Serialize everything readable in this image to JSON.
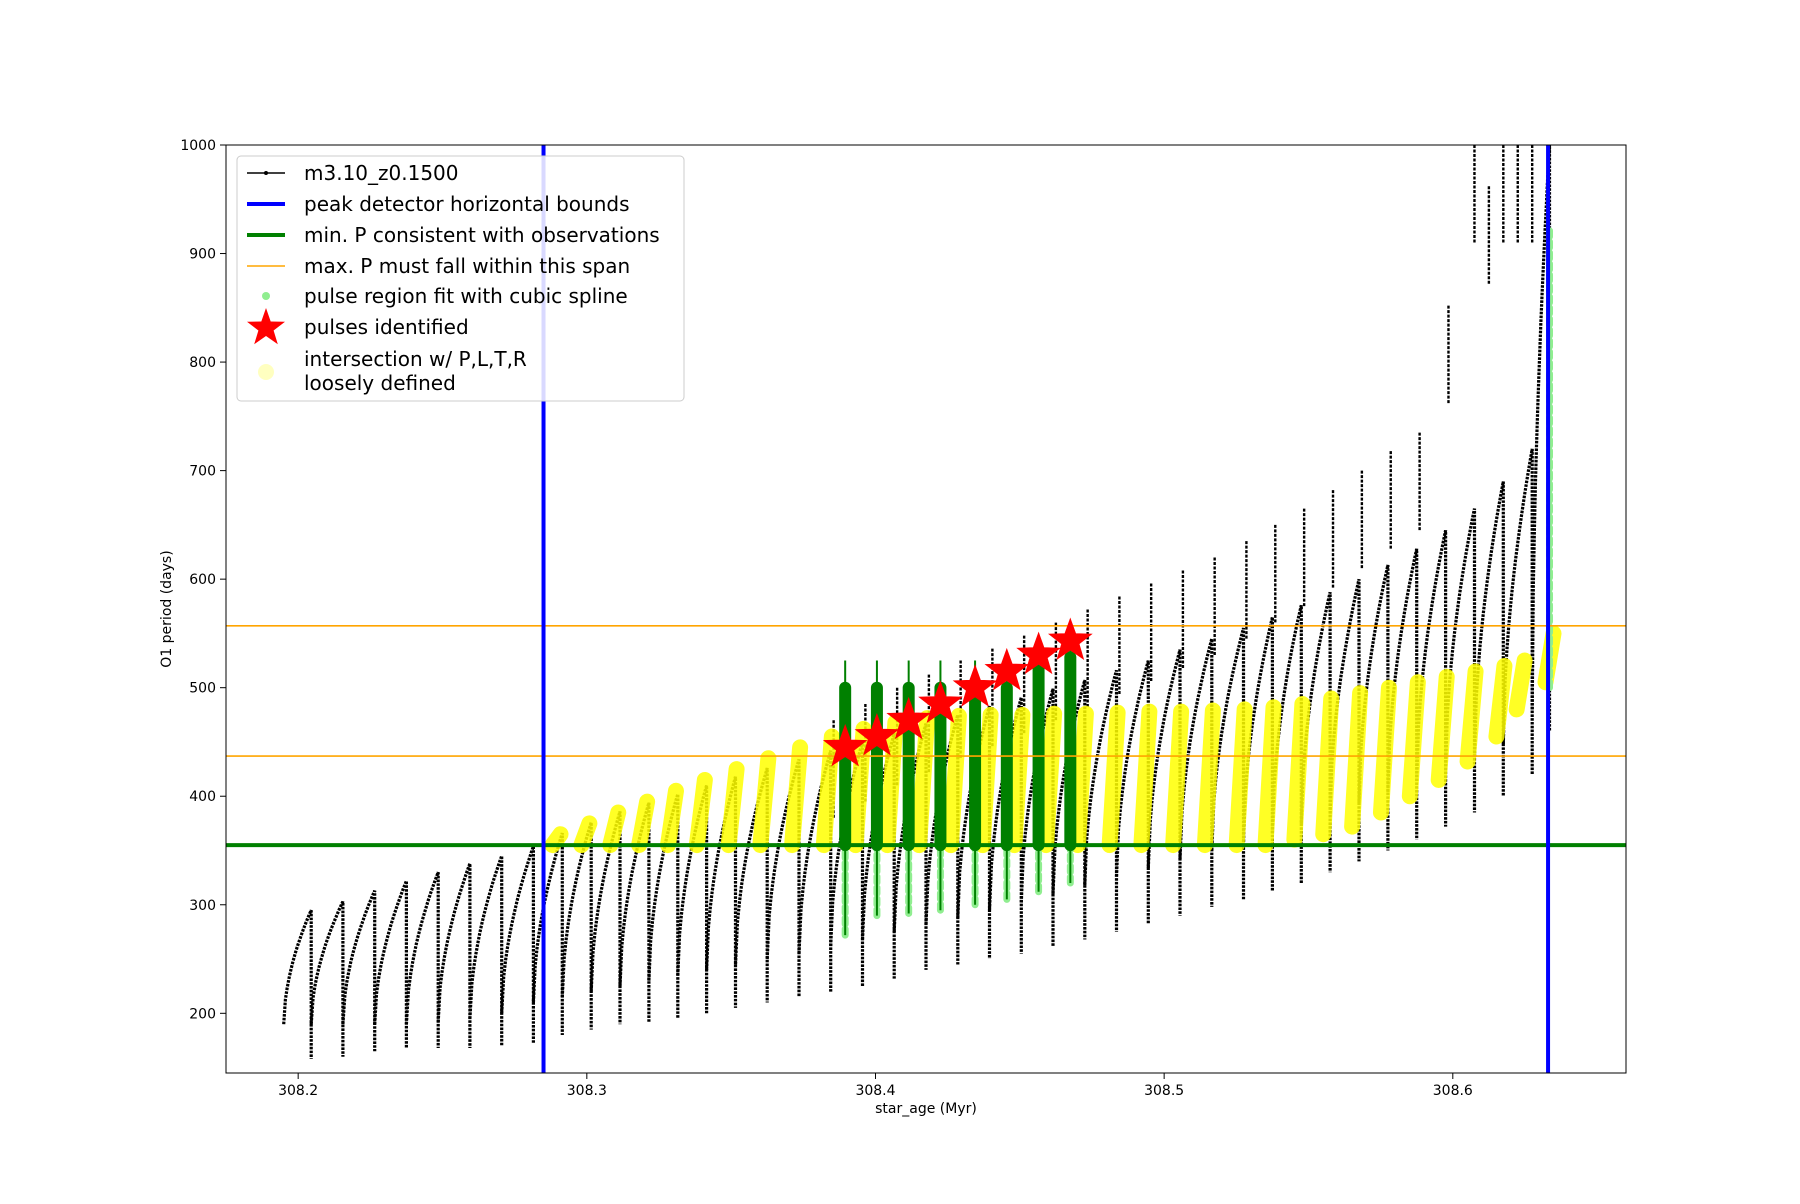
{
  "chart_data": {
    "type": "line",
    "title": "",
    "xlabel": "star_age (Myr)",
    "ylabel": "O1 period (days)",
    "xlim": [
      308.175,
      308.66
    ],
    "ylim": [
      145,
      1000
    ],
    "xticks": [
      308.2,
      308.3,
      308.4,
      308.5,
      308.6
    ],
    "xtick_labels": [
      "308.2",
      "308.3",
      "308.4",
      "308.5",
      "308.6"
    ],
    "yticks": [
      200,
      300,
      400,
      500,
      600,
      700,
      800,
      900,
      1000
    ],
    "ytick_labels": [
      "200",
      "300",
      "400",
      "500",
      "600",
      "700",
      "800",
      "900",
      "1000"
    ],
    "grid": false,
    "legend_placement": "top-left",
    "legend": [
      {
        "label": "m3.10_z0.1500",
        "kind": "line-marker",
        "color": "#000000"
      },
      {
        "label": "peak detector horizontal bounds",
        "kind": "thick-line",
        "color": "#0000ff"
      },
      {
        "label": "min. P consistent with observations",
        "kind": "thick-line",
        "color": "#008000"
      },
      {
        "label": "max. P must fall within this span",
        "kind": "thin-line",
        "color": "#ffa500"
      },
      {
        "label": "pulse region fit with cubic spline",
        "kind": "dot",
        "color": "#90ee90"
      },
      {
        "label": "pulses identified",
        "kind": "star",
        "color": "#ff0000"
      },
      {
        "label": "intersection w/ P,L,T,R\nloosely defined",
        "kind": "big-dot",
        "color": "#ffffc0"
      }
    ],
    "reference_lines": {
      "vertical_blue": [
        308.285,
        308.633
      ],
      "horizontal_green": 355,
      "horizontal_orange": [
        437,
        557
      ]
    },
    "series": [
      {
        "name": "m3.10_z0.1500",
        "color": "#000000",
        "pulses": [
          {
            "start": 308.195,
            "end": 308.2045,
            "low": 190,
            "high": 295,
            "drop": 158
          },
          {
            "start": 308.2045,
            "end": 308.2155,
            "low": 190,
            "high": 303,
            "drop": 160
          },
          {
            "start": 308.2155,
            "end": 308.2265,
            "low": 190,
            "high": 313,
            "drop": 165
          },
          {
            "start": 308.2265,
            "end": 308.2375,
            "low": 190,
            "high": 322,
            "drop": 168
          },
          {
            "start": 308.2375,
            "end": 308.2485,
            "low": 190,
            "high": 330,
            "drop": 168
          },
          {
            "start": 308.2485,
            "end": 308.2595,
            "low": 192,
            "high": 338,
            "drop": 168
          },
          {
            "start": 308.2595,
            "end": 308.2705,
            "low": 195,
            "high": 345,
            "drop": 170
          },
          {
            "start": 308.2705,
            "end": 308.2815,
            "low": 200,
            "high": 354,
            "drop": 172
          },
          {
            "start": 308.2815,
            "end": 308.2915,
            "low": 210,
            "high": 366,
            "drop": 180
          },
          {
            "start": 308.2915,
            "end": 308.3015,
            "low": 215,
            "high": 376,
            "drop": 185
          },
          {
            "start": 308.3015,
            "end": 308.3115,
            "low": 220,
            "high": 386,
            "drop": 190
          },
          {
            "start": 308.3115,
            "end": 308.3215,
            "low": 225,
            "high": 394,
            "drop": 192
          },
          {
            "start": 308.3215,
            "end": 308.3315,
            "low": 230,
            "high": 402,
            "drop": 195
          },
          {
            "start": 308.3315,
            "end": 308.3415,
            "low": 235,
            "high": 410,
            "drop": 200
          },
          {
            "start": 308.3415,
            "end": 308.3515,
            "low": 240,
            "high": 418,
            "drop": 205
          },
          {
            "start": 308.3515,
            "end": 308.3625,
            "low": 245,
            "high": 426,
            "drop": 210
          },
          {
            "start": 308.3625,
            "end": 308.3735,
            "low": 250,
            "high": 434,
            "drop": 215
          },
          {
            "start": 308.3735,
            "end": 308.3845,
            "low": 255,
            "high": 442,
            "drop": 220
          },
          {
            "start": 308.3845,
            "end": 308.3955,
            "low": 262,
            "high": 450,
            "drop": 225
          },
          {
            "start": 308.3955,
            "end": 308.4065,
            "low": 268,
            "high": 458,
            "drop": 232
          },
          {
            "start": 308.4065,
            "end": 308.4175,
            "low": 275,
            "high": 467,
            "drop": 240
          },
          {
            "start": 308.4175,
            "end": 308.4285,
            "low": 282,
            "high": 475,
            "drop": 245
          },
          {
            "start": 308.4285,
            "end": 308.4395,
            "low": 288,
            "high": 483,
            "drop": 250
          },
          {
            "start": 308.4395,
            "end": 308.4505,
            "low": 295,
            "high": 491,
            "drop": 255
          },
          {
            "start": 308.4505,
            "end": 308.4615,
            "low": 302,
            "high": 499,
            "drop": 262
          },
          {
            "start": 308.4615,
            "end": 308.4725,
            "low": 310,
            "high": 507,
            "drop": 268
          },
          {
            "start": 308.4725,
            "end": 308.4835,
            "low": 318,
            "high": 516,
            "drop": 275
          },
          {
            "start": 308.4835,
            "end": 308.4945,
            "low": 326,
            "high": 525,
            "drop": 283
          },
          {
            "start": 308.4945,
            "end": 308.5055,
            "low": 334,
            "high": 535,
            "drop": 290
          },
          {
            "start": 308.5055,
            "end": 308.5165,
            "low": 342,
            "high": 545,
            "drop": 298
          },
          {
            "start": 308.5165,
            "end": 308.5275,
            "low": 350,
            "high": 555,
            "drop": 305
          },
          {
            "start": 308.5275,
            "end": 308.5375,
            "low": 358,
            "high": 565,
            "drop": 313
          },
          {
            "start": 308.5375,
            "end": 308.5475,
            "low": 366,
            "high": 576,
            "drop": 320
          },
          {
            "start": 308.5475,
            "end": 308.5575,
            "low": 375,
            "high": 588,
            "drop": 330
          },
          {
            "start": 308.5575,
            "end": 308.5675,
            "low": 384,
            "high": 600,
            "drop": 340
          },
          {
            "start": 308.5675,
            "end": 308.5775,
            "low": 394,
            "high": 613,
            "drop": 350
          },
          {
            "start": 308.5775,
            "end": 308.5875,
            "low": 404,
            "high": 628,
            "drop": 360
          },
          {
            "start": 308.5875,
            "end": 308.5975,
            "low": 414,
            "high": 645,
            "drop": 372
          },
          {
            "start": 308.5975,
            "end": 308.6075,
            "low": 424,
            "high": 665,
            "drop": 385
          },
          {
            "start": 308.6075,
            "end": 308.6175,
            "low": 436,
            "high": 690,
            "drop": 400
          },
          {
            "start": 308.6175,
            "end": 308.6275,
            "low": 448,
            "high": 720,
            "drop": 420
          },
          {
            "start": 308.6275,
            "end": 308.6335,
            "low": 480,
            "high": 1000,
            "drop": 460
          }
        ],
        "spikes": [
          {
            "x": 308.3855,
            "y": 470
          },
          {
            "x": 308.3965,
            "y": 485
          },
          {
            "x": 308.4075,
            "y": 500
          },
          {
            "x": 308.4185,
            "y": 512
          },
          {
            "x": 308.4295,
            "y": 525
          },
          {
            "x": 308.4405,
            "y": 536
          },
          {
            "x": 308.4515,
            "y": 548
          },
          {
            "x": 308.4625,
            "y": 560
          },
          {
            "x": 308.4735,
            "y": 572
          },
          {
            "x": 308.4845,
            "y": 584
          },
          {
            "x": 308.4955,
            "y": 596
          },
          {
            "x": 308.5065,
            "y": 608
          },
          {
            "x": 308.5175,
            "y": 620
          },
          {
            "x": 308.5285,
            "y": 635
          },
          {
            "x": 308.5385,
            "y": 650
          },
          {
            "x": 308.5485,
            "y": 665
          },
          {
            "x": 308.5585,
            "y": 682
          },
          {
            "x": 308.5685,
            "y": 700
          },
          {
            "x": 308.5785,
            "y": 718
          },
          {
            "x": 308.5885,
            "y": 735
          },
          {
            "x": 308.5985,
            "y": 852
          },
          {
            "x": 308.6075,
            "y": 1000
          },
          {
            "x": 308.6125,
            "y": 962
          },
          {
            "x": 308.6175,
            "y": 1000
          },
          {
            "x": 308.6225,
            "y": 1000
          },
          {
            "x": 308.6275,
            "y": 1000
          }
        ]
      },
      {
        "name": "pulse region fit with cubic spline",
        "color": "#90ee90",
        "x": [
          308.3895,
          308.4005,
          308.4115,
          308.4225,
          308.4345,
          308.4455,
          308.4565,
          308.4675,
          308.6335
        ],
        "lows": [
          272,
          290,
          292,
          295,
          300,
          305,
          312,
          320,
          500
        ],
        "highs": [
          500,
          500,
          500,
          500,
          500,
          500,
          520,
          528,
          925
        ]
      },
      {
        "name": "pulses identified",
        "color": "#ff0000",
        "x": [
          308.3895,
          308.4005,
          308.4115,
          308.4225,
          308.4345,
          308.4455,
          308.4565,
          308.4675
        ],
        "values": [
          445,
          455,
          470,
          485,
          500,
          515,
          530,
          543
        ]
      },
      {
        "name": "intersection w/ P,L,T,R loosely defined",
        "color": "#ffff00",
        "x": [
          308.2895,
          308.2995,
          308.3095,
          308.3195,
          308.3295,
          308.3395,
          308.3505,
          308.3615,
          308.3725,
          308.3835,
          308.3945,
          308.4055,
          308.4165,
          308.4275,
          308.4385,
          308.4495,
          308.4605,
          308.4715,
          308.4825,
          308.4935,
          308.5045,
          308.5155,
          308.5265,
          308.5365,
          308.5465,
          308.5565,
          308.5665,
          308.5765,
          308.5865,
          308.5965,
          308.6065,
          308.6165,
          308.6235,
          308.6335
        ],
        "lows": [
          355,
          355,
          355,
          355,
          355,
          355,
          355,
          355,
          355,
          355,
          355,
          355,
          355,
          355,
          355,
          355,
          355,
          355,
          355,
          355,
          355,
          355,
          355,
          355,
          360,
          365,
          372,
          385,
          400,
          415,
          432,
          455,
          480,
          505
        ],
        "highs": [
          365,
          375,
          385,
          395,
          405,
          415,
          425,
          435,
          445,
          455,
          462,
          468,
          472,
          474,
          475,
          475,
          476,
          476,
          477,
          478,
          478,
          479,
          480,
          482,
          485,
          490,
          495,
          500,
          505,
          510,
          515,
          520,
          525,
          550
        ]
      }
    ]
  }
}
